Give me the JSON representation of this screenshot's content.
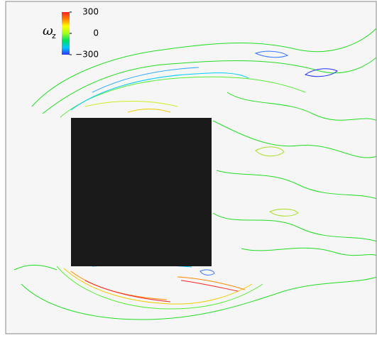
{
  "chart_data": {
    "type": "contour",
    "colorbar": {
      "label": "ω",
      "label_subscript": "z",
      "clim": [
        -300,
        300
      ],
      "ticks": [
        300,
        0,
        {
          "value": -300,
          "label": "−300"
        }
      ],
      "colormap": [
        "#3030ff",
        "#00c8ff",
        "#00e060",
        "#a0ff20",
        "#ffff00",
        "#ff8000",
        "#ff2020"
      ]
    }
  }
}
